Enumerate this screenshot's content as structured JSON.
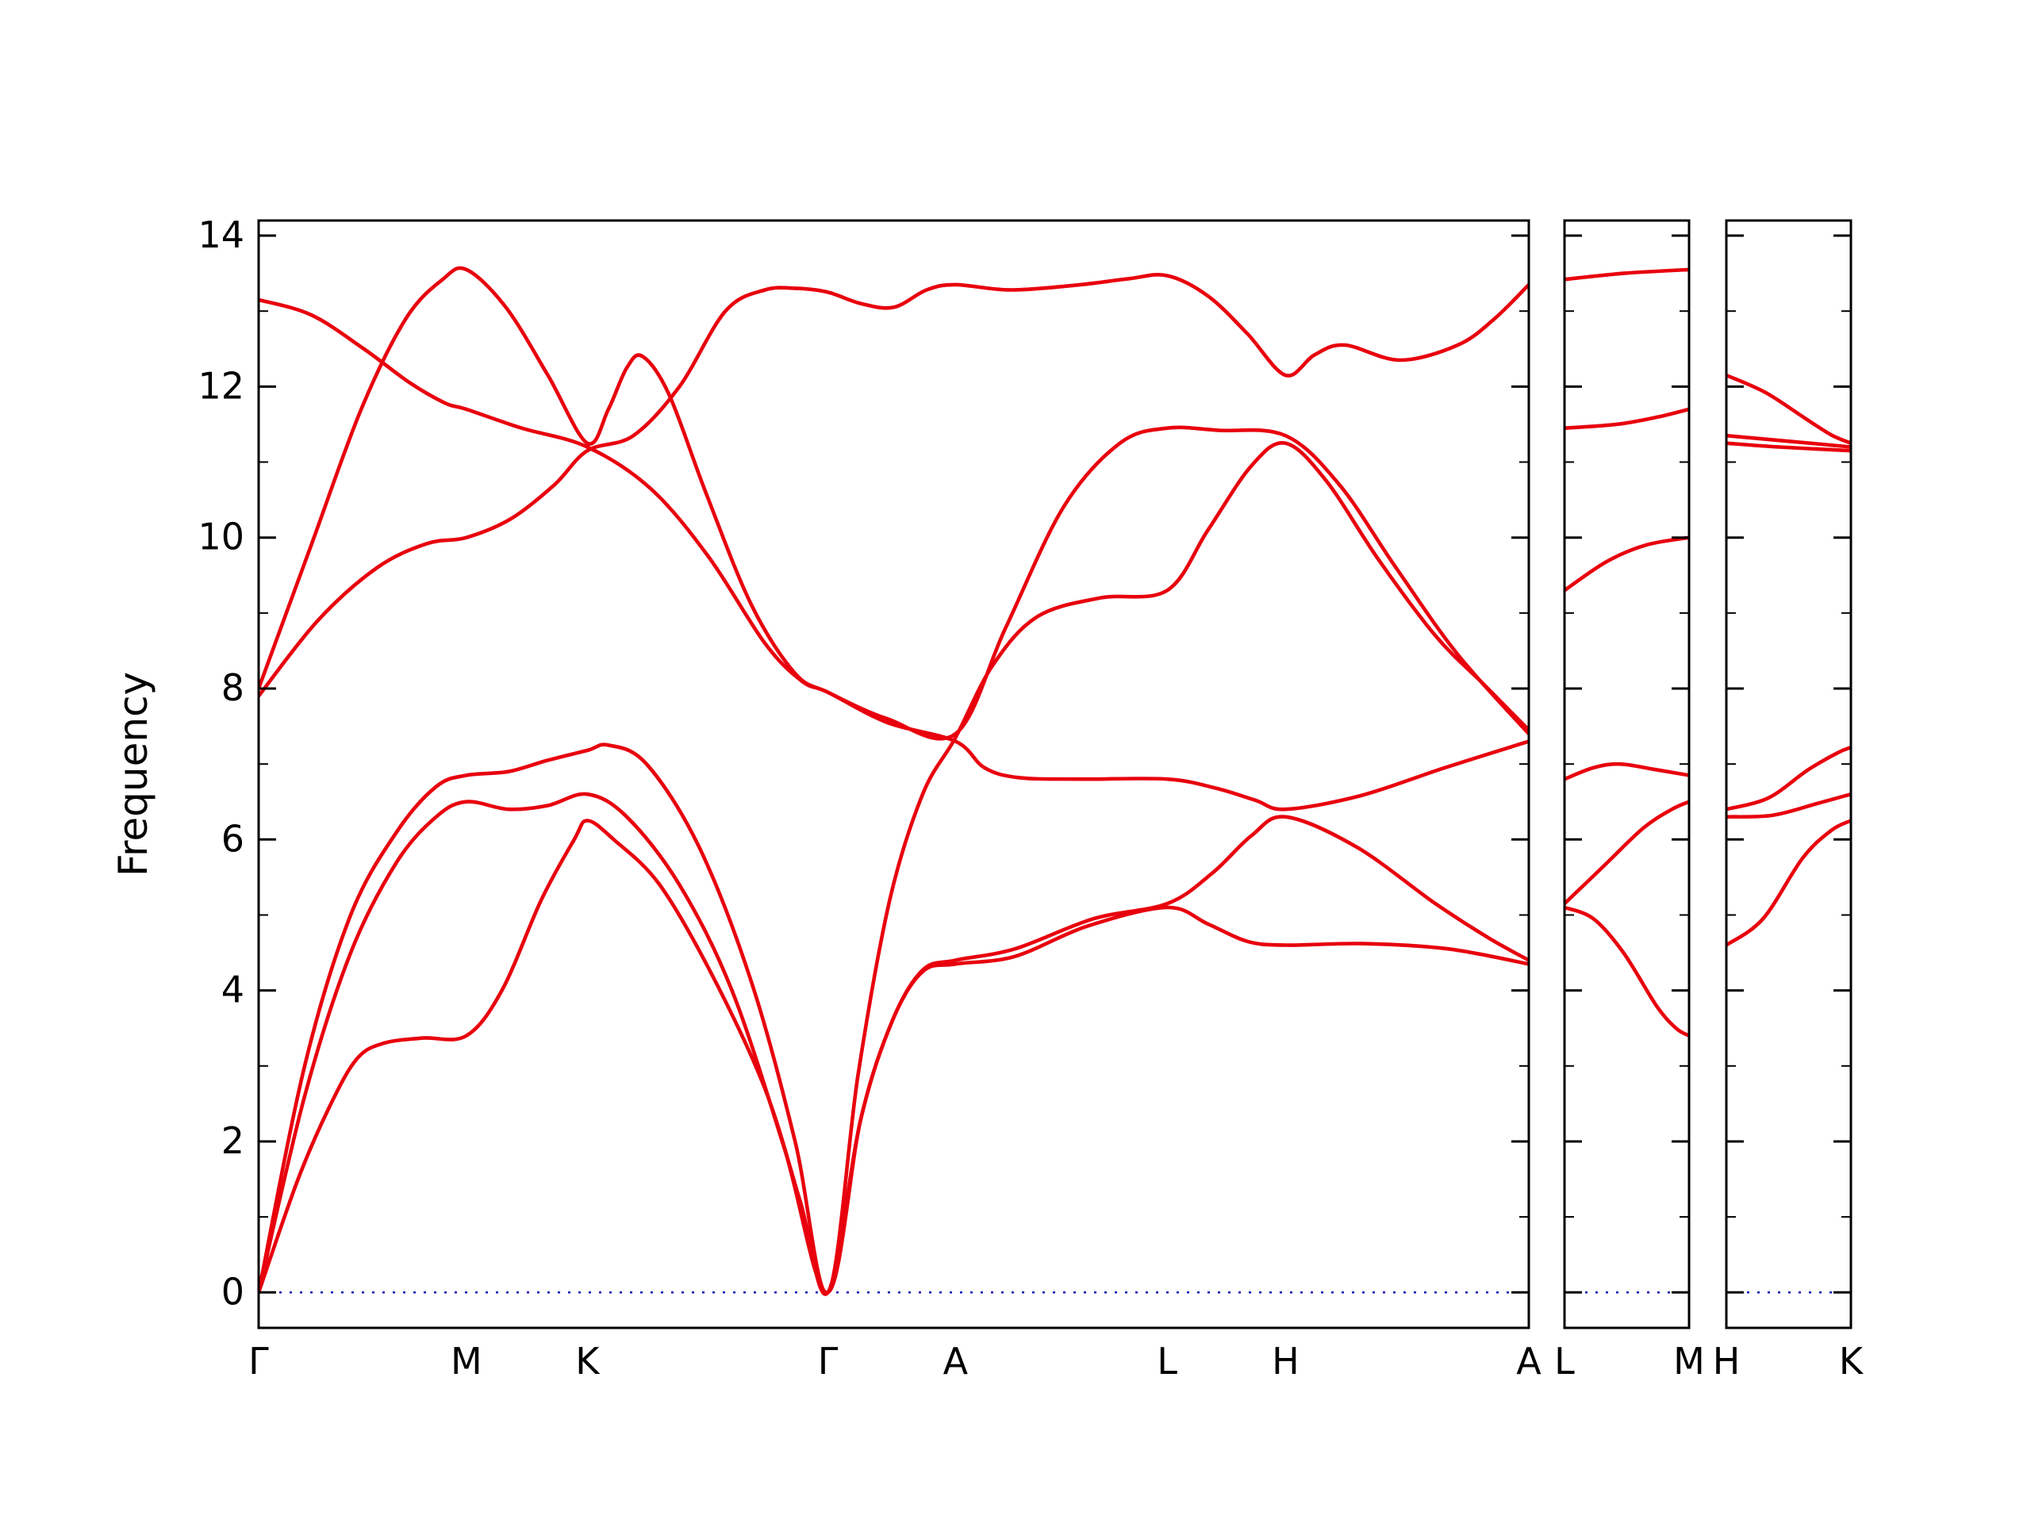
{
  "figure_title": "",
  "chart_data": {
    "type": "line",
    "title": "",
    "ylabel": "Frequency",
    "xlabel": "",
    "yticks": [
      0,
      2,
      4,
      6,
      8,
      10,
      12,
      14
    ],
    "minor_ytick_step": 1,
    "ylim": [
      -0.47,
      14.2
    ],
    "grid": false,
    "band_color": "#e8000d",
    "zero_line_color": "#0000b4",
    "axis_color": "#000000",
    "legend": null,
    "panels": [
      {
        "name": "main-panel",
        "xlim": [
          0,
          966
        ],
        "xticks": [
          {
            "pos": 0,
            "label": "Γ"
          },
          {
            "pos": 158,
            "label": "M"
          },
          {
            "pos": 250,
            "label": "K"
          },
          {
            "pos": 433,
            "label": "Γ"
          },
          {
            "pos": 530,
            "label": "A"
          },
          {
            "pos": 691,
            "label": "L"
          },
          {
            "pos": 781,
            "label": "H"
          },
          {
            "pos": 966,
            "label": "A"
          }
        ],
        "bands": [
          [
            [
              0,
              0
            ],
            [
              30,
              1.5
            ],
            [
              55,
              2.5
            ],
            [
              75,
              3.1
            ],
            [
              95,
              3.3
            ],
            [
              125,
              3.37
            ],
            [
              158,
              3.4
            ],
            [
              185,
              4.0
            ],
            [
              215,
              5.2
            ],
            [
              240,
              6.0
            ],
            [
              250,
              6.25
            ],
            [
              270,
              6.0
            ],
            [
              305,
              5.4
            ],
            [
              345,
              4.2
            ],
            [
              385,
              2.7
            ],
            [
              412,
              1.2
            ],
            [
              433,
              0
            ],
            [
              458,
              2.3
            ],
            [
              482,
              3.6
            ],
            [
              505,
              4.25
            ],
            [
              530,
              4.35
            ],
            [
              575,
              4.45
            ],
            [
              630,
              4.85
            ],
            [
              691,
              5.1
            ],
            [
              722,
              4.88
            ],
            [
              752,
              4.65
            ],
            [
              781,
              4.6
            ],
            [
              840,
              4.62
            ],
            [
              905,
              4.55
            ],
            [
              966,
              4.35
            ]
          ],
          [
            [
              0,
              0
            ],
            [
              35,
              2.6
            ],
            [
              70,
              4.5
            ],
            [
              105,
              5.7
            ],
            [
              135,
              6.3
            ],
            [
              158,
              6.5
            ],
            [
              190,
              6.4
            ],
            [
              220,
              6.45
            ],
            [
              250,
              6.6
            ],
            [
              280,
              6.3
            ],
            [
              320,
              5.4
            ],
            [
              360,
              4.0
            ],
            [
              400,
              1.9
            ],
            [
              433,
              0
            ],
            [
              458,
              2.3
            ],
            [
              482,
              3.6
            ],
            [
              505,
              4.27
            ],
            [
              530,
              4.4
            ],
            [
              575,
              4.55
            ],
            [
              635,
              4.95
            ],
            [
              691,
              5.15
            ],
            [
              725,
              5.55
            ],
            [
              755,
              6.05
            ],
            [
              781,
              6.3
            ],
            [
              835,
              5.9
            ],
            [
              895,
              5.15
            ],
            [
              935,
              4.7
            ],
            [
              966,
              4.4
            ]
          ],
          [
            [
              0,
              0
            ],
            [
              35,
              3.0
            ],
            [
              70,
              5.0
            ],
            [
              105,
              6.1
            ],
            [
              135,
              6.7
            ],
            [
              158,
              6.85
            ],
            [
              190,
              6.9
            ],
            [
              220,
              7.05
            ],
            [
              250,
              7.18
            ],
            [
              266,
              7.25
            ],
            [
              295,
              7.0
            ],
            [
              335,
              5.9
            ],
            [
              375,
              4.1
            ],
            [
              408,
              2.0
            ],
            [
              433,
              0
            ],
            [
              456,
              2.9
            ],
            [
              480,
              5.2
            ],
            [
              505,
              6.6
            ],
            [
              530,
              7.35
            ],
            [
              558,
              8.3
            ],
            [
              592,
              8.95
            ],
            [
              640,
              9.2
            ],
            [
              691,
              9.3
            ],
            [
              722,
              10.1
            ],
            [
              755,
              10.95
            ],
            [
              781,
              11.25
            ],
            [
              812,
              10.75
            ],
            [
              852,
              9.7
            ],
            [
              895,
              8.7
            ],
            [
              932,
              8.05
            ],
            [
              966,
              7.45
            ]
          ],
          [
            [
              0,
              7.9
            ],
            [
              45,
              8.9
            ],
            [
              90,
              9.6
            ],
            [
              128,
              9.92
            ],
            [
              158,
              10.0
            ],
            [
              192,
              10.25
            ],
            [
              225,
              10.7
            ],
            [
              250,
              11.15
            ],
            [
              285,
              11.35
            ],
            [
              320,
              12.0
            ],
            [
              355,
              13.0
            ],
            [
              385,
              13.28
            ],
            [
              410,
              13.3
            ],
            [
              433,
              13.25
            ],
            [
              458,
              13.1
            ],
            [
              483,
              13.05
            ],
            [
              508,
              13.28
            ],
            [
              530,
              13.35
            ],
            [
              572,
              13.28
            ],
            [
              625,
              13.35
            ],
            [
              662,
              13.43
            ],
            [
              691,
              13.47
            ],
            [
              722,
              13.2
            ],
            [
              752,
              12.7
            ],
            [
              781,
              12.15
            ],
            [
              803,
              12.42
            ],
            [
              826,
              12.55
            ],
            [
              868,
              12.35
            ],
            [
              912,
              12.55
            ],
            [
              940,
              12.9
            ],
            [
              966,
              13.35
            ]
          ],
          [
            [
              0,
              8.0
            ],
            [
              40,
              9.9
            ],
            [
              78,
              11.7
            ],
            [
              112,
              12.9
            ],
            [
              140,
              13.42
            ],
            [
              158,
              13.55
            ],
            [
              188,
              13.05
            ],
            [
              220,
              12.15
            ],
            [
              250,
              11.25
            ],
            [
              266,
              11.7
            ],
            [
              280,
              12.25
            ],
            [
              292,
              12.4
            ],
            [
              312,
              11.9
            ],
            [
              340,
              10.6
            ],
            [
              375,
              9.1
            ],
            [
              408,
              8.2
            ],
            [
              433,
              7.95
            ],
            [
              478,
              7.6
            ],
            [
              530,
              7.4
            ],
            [
              568,
              8.8
            ],
            [
              612,
              10.4
            ],
            [
              655,
              11.25
            ],
            [
              691,
              11.45
            ],
            [
              730,
              11.42
            ],
            [
              781,
              11.35
            ],
            [
              822,
              10.7
            ],
            [
              865,
              9.6
            ],
            [
              912,
              8.45
            ],
            [
              966,
              7.4
            ]
          ],
          [
            [
              0,
              13.15
            ],
            [
              40,
              12.95
            ],
            [
              80,
              12.5
            ],
            [
              115,
              12.05
            ],
            [
              142,
              11.78
            ],
            [
              158,
              11.7
            ],
            [
              200,
              11.45
            ],
            [
              250,
              11.2
            ],
            [
              298,
              10.65
            ],
            [
              342,
              9.75
            ],
            [
              385,
              8.6
            ],
            [
              413,
              8.1
            ],
            [
              433,
              7.95
            ],
            [
              478,
              7.55
            ],
            [
              530,
              7.3
            ],
            [
              552,
              6.95
            ],
            [
              578,
              6.82
            ],
            [
              625,
              6.8
            ],
            [
              691,
              6.8
            ],
            [
              728,
              6.68
            ],
            [
              758,
              6.52
            ],
            [
              781,
              6.4
            ],
            [
              838,
              6.58
            ],
            [
              902,
              6.95
            ],
            [
              966,
              7.3
            ]
          ]
        ]
      },
      {
        "name": "L-M-panel",
        "xlim": [
          0,
          95
        ],
        "xticks": [
          {
            "pos": 0,
            "label": "L"
          },
          {
            "pos": 95,
            "label": "M"
          }
        ],
        "bands": [
          [
            [
              0,
              5.1
            ],
            [
              22,
              4.95
            ],
            [
              45,
              4.5
            ],
            [
              70,
              3.8
            ],
            [
              85,
              3.5
            ],
            [
              95,
              3.4
            ]
          ],
          [
            [
              0,
              5.15
            ],
            [
              30,
              5.65
            ],
            [
              60,
              6.15
            ],
            [
              82,
              6.4
            ],
            [
              95,
              6.5
            ]
          ],
          [
            [
              0,
              6.8
            ],
            [
              22,
              6.95
            ],
            [
              42,
              7.0
            ],
            [
              68,
              6.93
            ],
            [
              95,
              6.85
            ]
          ],
          [
            [
              0,
              9.3
            ],
            [
              32,
              9.68
            ],
            [
              62,
              9.9
            ],
            [
              95,
              10.0
            ]
          ],
          [
            [
              0,
              11.45
            ],
            [
              40,
              11.5
            ],
            [
              72,
              11.6
            ],
            [
              95,
              11.7
            ]
          ],
          [
            [
              0,
              13.42
            ],
            [
              45,
              13.5
            ],
            [
              95,
              13.55
            ]
          ]
        ]
      },
      {
        "name": "H-K-panel",
        "xlim": [
          0,
          95
        ],
        "xticks": [
          {
            "pos": 0,
            "label": "H"
          },
          {
            "pos": 95,
            "label": "K"
          }
        ],
        "bands": [
          [
            [
              0,
              4.6
            ],
            [
              28,
              4.95
            ],
            [
              58,
              5.75
            ],
            [
              80,
              6.12
            ],
            [
              95,
              6.25
            ]
          ],
          [
            [
              0,
              6.3
            ],
            [
              35,
              6.32
            ],
            [
              70,
              6.48
            ],
            [
              95,
              6.6
            ]
          ],
          [
            [
              0,
              6.4
            ],
            [
              32,
              6.55
            ],
            [
              62,
              6.92
            ],
            [
              85,
              7.15
            ],
            [
              95,
              7.22
            ]
          ],
          [
            [
              0,
              11.25
            ],
            [
              40,
              11.2
            ],
            [
              95,
              11.15
            ]
          ],
          [
            [
              0,
              11.35
            ],
            [
              45,
              11.28
            ],
            [
              95,
              11.2
            ]
          ],
          [
            [
              0,
              12.15
            ],
            [
              30,
              11.92
            ],
            [
              60,
              11.58
            ],
            [
              80,
              11.36
            ],
            [
              95,
              11.25
            ]
          ]
        ]
      }
    ]
  }
}
